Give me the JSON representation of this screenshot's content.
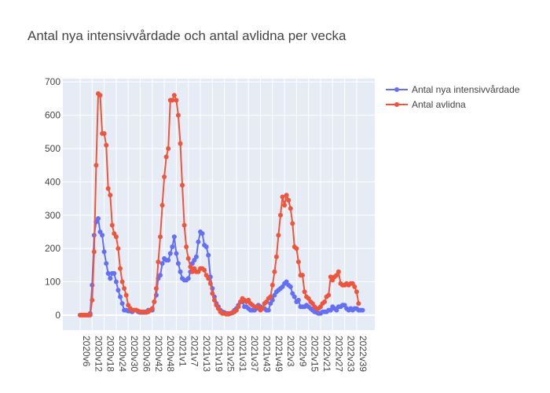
{
  "chart_data": {
    "type": "line",
    "title": "Antal nya intensivvårdade och antal avlidna per vecka",
    "xlabel": "",
    "ylabel": "",
    "ylim": [
      -45,
      710
    ],
    "y_ticks": [
      0,
      100,
      200,
      300,
      400,
      500,
      600,
      700
    ],
    "x_tick_labels": [
      "2020v6",
      "2020v12",
      "2020v18",
      "2020v24",
      "2020v30",
      "2020v36",
      "2020v42",
      "2020v48",
      "2021v1",
      "2021v7",
      "2021v13",
      "2021v19",
      "2021v25",
      "2021v31",
      "2021v37",
      "2021v43",
      "2021v49",
      "2022v3",
      "2022v9",
      "2022v15",
      "2022v21",
      "2022v27",
      "2022v33",
      "2022v39"
    ],
    "grid": true,
    "legend_position": "top-right",
    "colors": {
      "series1": "#636efa",
      "series2": "#ef553b",
      "plot_bg": "#e5ecf6"
    },
    "series": [
      {
        "name": "Antal nya intensivvårdade",
        "values": [
          0,
          0,
          0,
          0,
          0,
          5,
          90,
          240,
          280,
          290,
          250,
          240,
          190,
          155,
          125,
          110,
          125,
          125,
          100,
          75,
          55,
          35,
          15,
          15,
          12,
          12,
          10,
          15,
          15,
          10,
          8,
          8,
          8,
          10,
          15,
          15,
          15,
          40,
          60,
          110,
          120,
          155,
          170,
          165,
          165,
          185,
          205,
          235,
          185,
          155,
          130,
          110,
          105,
          105,
          110,
          130,
          155,
          165,
          175,
          220,
          250,
          245,
          210,
          205,
          180,
          115,
          80,
          55,
          35,
          25,
          15,
          10,
          8,
          5,
          5,
          5,
          7,
          15,
          20,
          30,
          40,
          40,
          25,
          25,
          20,
          15,
          15,
          15,
          20,
          30,
          25,
          20,
          20,
          15,
          15,
          35,
          45,
          60,
          70,
          75,
          80,
          85,
          95,
          100,
          90,
          85,
          65,
          55,
          40,
          45,
          25,
          25,
          25,
          30,
          25,
          20,
          15,
          10,
          8,
          5,
          5,
          10,
          10,
          10,
          15,
          15,
          25,
          20,
          15,
          25,
          25,
          30,
          30,
          20,
          15,
          20,
          15,
          20,
          20,
          15,
          15,
          15
        ]
      },
      {
        "name": "Antal avlidna",
        "values": [
          0,
          0,
          0,
          0,
          0,
          0,
          45,
          190,
          450,
          665,
          660,
          545,
          545,
          510,
          380,
          360,
          270,
          245,
          235,
          200,
          140,
          100,
          80,
          60,
          30,
          20,
          15,
          15,
          15,
          12,
          10,
          10,
          10,
          8,
          10,
          15,
          20,
          40,
          80,
          160,
          235,
          330,
          415,
          475,
          500,
          645,
          645,
          660,
          645,
          600,
          515,
          390,
          270,
          205,
          170,
          145,
          130,
          140,
          130,
          130,
          140,
          140,
          135,
          120,
          110,
          95,
          65,
          45,
          30,
          20,
          10,
          5,
          5,
          3,
          3,
          5,
          8,
          10,
          15,
          25,
          40,
          50,
          45,
          40,
          45,
          35,
          30,
          25,
          25,
          25,
          15,
          20,
          35,
          40,
          50,
          55,
          90,
          130,
          175,
          240,
          300,
          355,
          330,
          360,
          345,
          320,
          275,
          205,
          200,
          160,
          120,
          120,
          70,
          55,
          50,
          40,
          35,
          25,
          20,
          20,
          25,
          35,
          40,
          55,
          60,
          115,
          105,
          115,
          120,
          130,
          95,
          90,
          90,
          95,
          90,
          95,
          95,
          85,
          70,
          35
        ]
      }
    ]
  }
}
